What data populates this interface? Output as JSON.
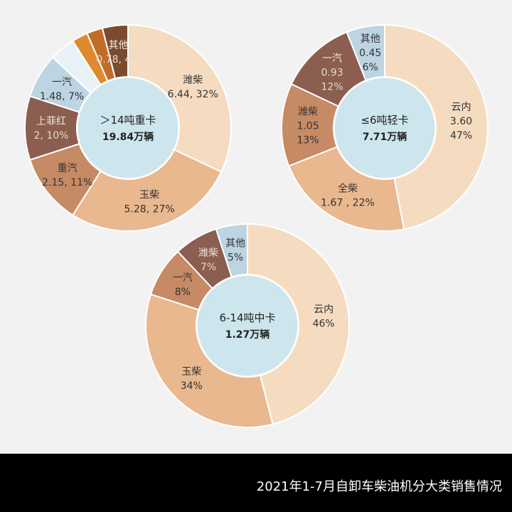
{
  "chart_data": [
    {
      "type": "pie",
      "variant": "donut",
      "center_title": "＞14吨重卡",
      "center_total": "19.84万辆",
      "unit": "万辆",
      "slices": [
        {
          "name": "潍柴",
          "value": 6.44,
          "pct": 32,
          "color": "#f5dcc0",
          "label": [
            "潍柴",
            "6.44, 32%"
          ]
        },
        {
          "name": "玉柴",
          "value": 5.28,
          "pct": 27,
          "color": "#e9b88f",
          "label": [
            "玉柴",
            "5.28, 27%"
          ]
        },
        {
          "name": "重汽",
          "value": 2.15,
          "pct": 11,
          "color": "#c68a64",
          "label": [
            "重汽",
            "2.15, 11%"
          ]
        },
        {
          "name": "上菲红",
          "value": 2,
          "pct": 10,
          "color": "#8b5e4f",
          "label": [
            "上菲红",
            "2, 10%"
          ],
          "light": true
        },
        {
          "name": "一汽",
          "value": 1.48,
          "pct": 7,
          "color": "#bdd4e2",
          "label": [
            "一汽",
            "1.48, 7%"
          ]
        },
        {
          "name": "",
          "value": 0.75,
          "pct": 4,
          "color": "#e8f2f6",
          "label": []
        },
        {
          "name": "",
          "value": 0.5,
          "pct": 2.5,
          "color": "#df8a2e",
          "label": []
        },
        {
          "name": "",
          "value": 0.46,
          "pct": 2.5,
          "color": "#c26c2a",
          "label": []
        },
        {
          "name": "其他",
          "value": 0.78,
          "pct": 4,
          "color": "#7b4b2f",
          "label": [
            "其他",
            "0.78, 4%"
          ],
          "light": true
        }
      ]
    },
    {
      "type": "pie",
      "variant": "donut",
      "center_title": "≤6吨轻卡",
      "center_total": "7.71万辆",
      "unit": "万辆",
      "slices": [
        {
          "name": "云内",
          "value": 3.6,
          "pct": 47,
          "color": "#f5dcc0",
          "label": [
            "云内",
            "3.60",
            "47%"
          ]
        },
        {
          "name": "全柴",
          "value": 1.67,
          "pct": 22,
          "color": "#e9b88f",
          "label": [
            "全柴",
            "1.67 , 22%"
          ]
        },
        {
          "name": "潍柴",
          "value": 1.05,
          "pct": 13,
          "color": "#c68a64",
          "label": [
            "潍柴",
            "1.05",
            "13%"
          ]
        },
        {
          "name": "一汽",
          "value": 0.93,
          "pct": 12,
          "color": "#8b5e4f",
          "label": [
            "一汽",
            "0.93",
            "12%"
          ],
          "light": true
        },
        {
          "name": "其他",
          "value": 0.45,
          "pct": 6,
          "color": "#bdd4e2",
          "label": [
            "其他",
            "0.45",
            "6%"
          ]
        }
      ]
    },
    {
      "type": "pie",
      "variant": "donut",
      "center_title": "6-14吨中卡",
      "center_total": "1.27万辆",
      "unit": "万辆",
      "slices": [
        {
          "name": "云内",
          "value": 46,
          "pct": 46,
          "color": "#f5dcc0",
          "label": [
            "云内",
            "46%"
          ]
        },
        {
          "name": "玉柴",
          "value": 34,
          "pct": 34,
          "color": "#e9b88f",
          "label": [
            "玉柴",
            "34%"
          ]
        },
        {
          "name": "一汽",
          "value": 8,
          "pct": 8,
          "color": "#c68a64",
          "label": [
            "一汽",
            "8%"
          ]
        },
        {
          "name": "潍柴",
          "value": 7,
          "pct": 7,
          "color": "#8b5e4f",
          "label": [
            "潍柴",
            "7%"
          ],
          "light": true
        },
        {
          "name": "其他",
          "value": 5,
          "pct": 5,
          "color": "#bdd4e2",
          "label": [
            "其他",
            "5%"
          ]
        }
      ]
    }
  ],
  "footer": {
    "title": "2021年1-7月自卸车柴油机分大类销售情况"
  }
}
